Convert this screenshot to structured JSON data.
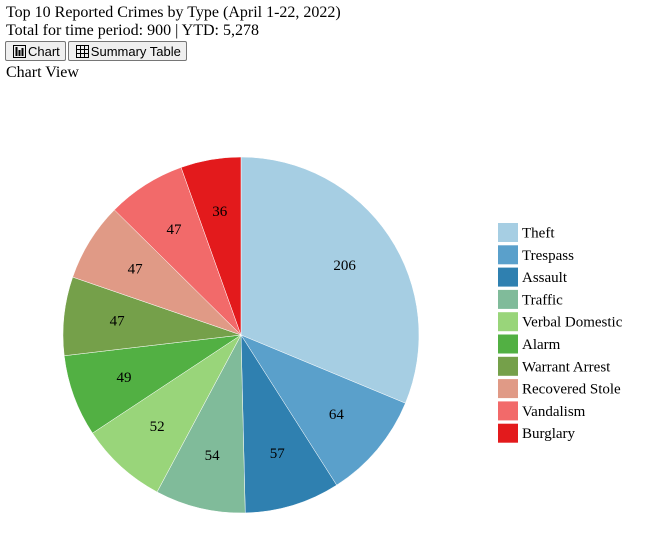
{
  "header": {
    "title": "Top 10 Reported Crimes by Type (April 1-22, 2022)",
    "totals": "Total for time period: 900 | YTD: 5,278"
  },
  "toolbar": {
    "chart_label": "Chart",
    "chart_icon": "bar-chart-icon",
    "table_label": "Summary Table",
    "table_icon": "table-icon"
  },
  "view_label": "Chart View",
  "chart_data": {
    "type": "pie",
    "title": "",
    "categories": [
      "Theft",
      "Trespass",
      "Assault",
      "Traffic",
      "Verbal Domestic",
      "Alarm",
      "Warrant Arrest",
      "Recovered Stole",
      "Vandalism",
      "Burglary"
    ],
    "values": [
      206,
      64,
      57,
      54,
      52,
      49,
      47,
      47,
      47,
      36
    ],
    "colors": [
      "#a6cee3",
      "#5aa0cb",
      "#2f80b0",
      "#80bb9a",
      "#99d57a",
      "#52b043",
      "#75a04a",
      "#e09a86",
      "#f26a6a",
      "#e31a1c"
    ],
    "legend_position": "right",
    "start_angle": "12 o'clock",
    "direction": "clockwise",
    "data_labels": true
  }
}
